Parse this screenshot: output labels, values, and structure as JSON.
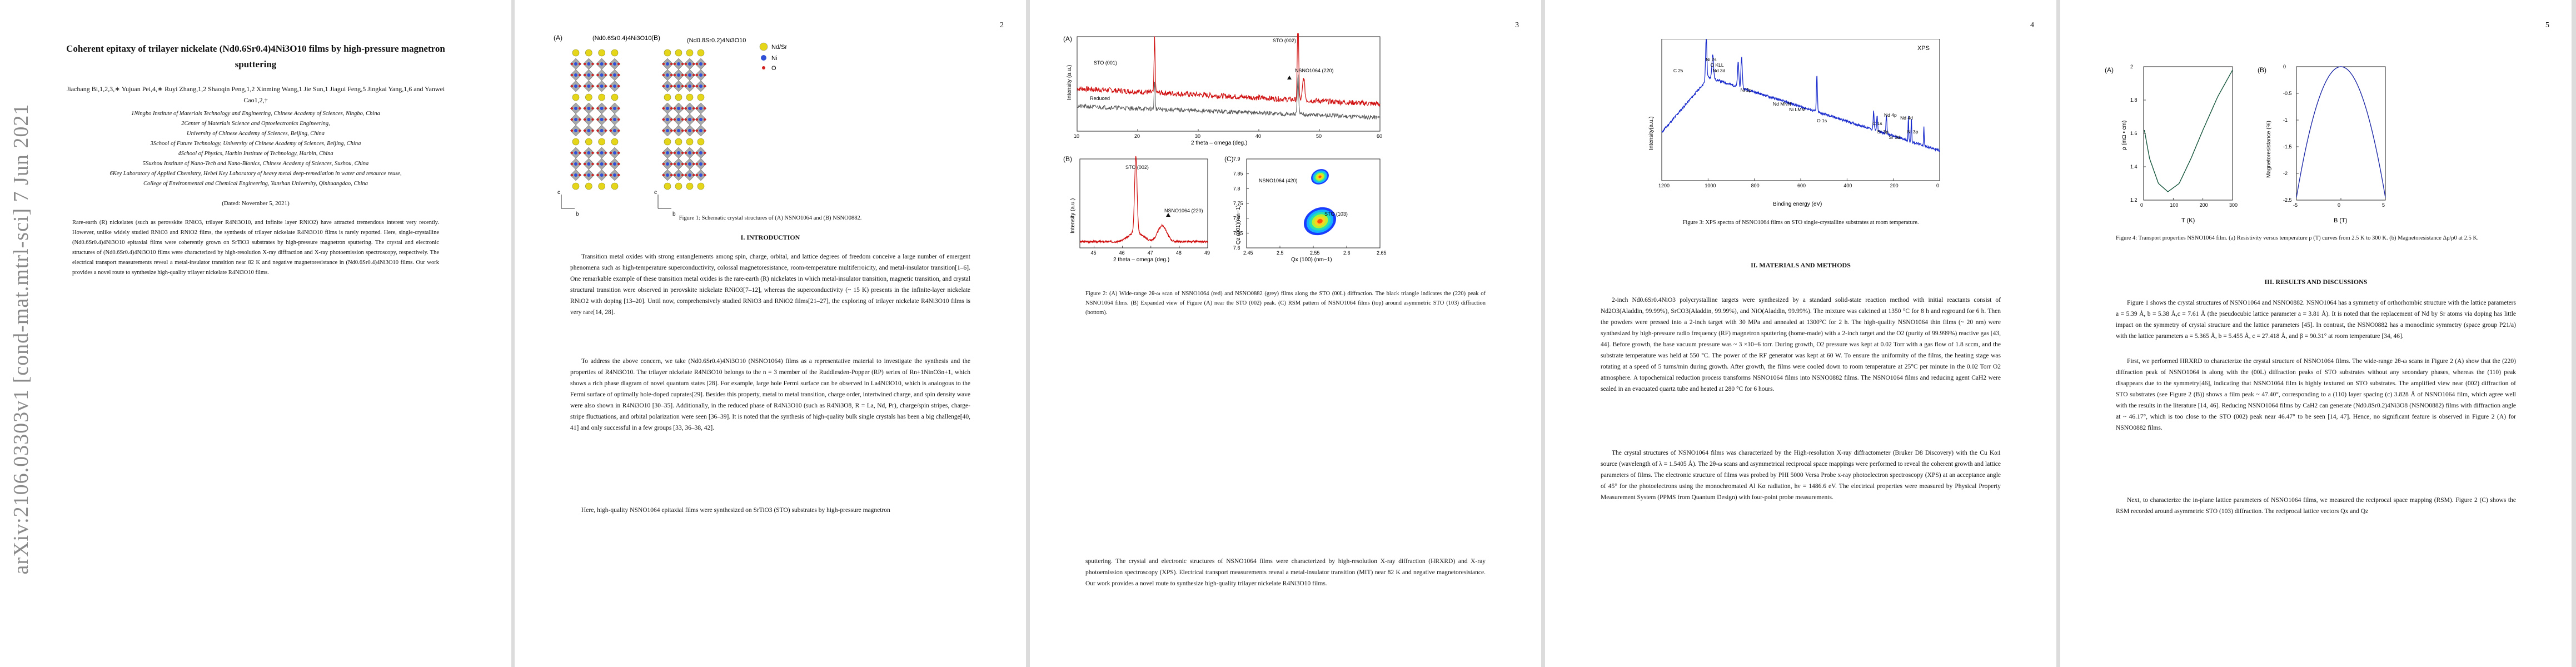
{
  "arxiv_id": "arXiv:2106.03303v1  [cond-mat.mtrl-sci]  7 Jun 2021",
  "page1": {
    "title": "Coherent epitaxy of trilayer nickelate (Nd0.6Sr0.4)4Ni3O10 films by high-pressure magnetron sputtering",
    "authors": "Jiachang Bi,1,2,3,∗ Yujuan Pei,4,∗ Ruyi Zhang,1,2 Shaoqin Peng,1,2 Xinming Wang,1 Jie Sun,1 Jiagui Feng,5 Jingkai Yang,1,6 and Yanwei Cao1,2,†",
    "affiliations": [
      "1Ningbo Institute of Materials Technology and Engineering, Chinese Academy of Sciences, Ningbo, China",
      "2Center of Materials Science and Optoelectronics Engineering,",
      "University of Chinese Academy of Sciences, Beijing, China",
      "3School of Future Technology, University of Chinese Academy of Sciences, Beijing, China",
      "4School of Physics, Harbin Institute of Technology, Harbin, China",
      "5Suzhou Institute of Nano-Tech and Nano-Bionics, Chinese Academy of Sciences, Suzhou, China",
      "6Key Laboratory of Applied Chemistry, Hebei Key Laboratory of heavy metal deep-remediation in water and resource reuse,",
      "College of Environmental and Chemical Engineering, Yanshan University, Qinhuangdao, China"
    ],
    "date": "(Dated: November 5, 2021)",
    "abstract": "Rare-earth (R) nickelates (such as perovskite RNiO3, trilayer R4Ni3O10, and infinite layer RNiO2) have attracted tremendous interest very recently. However, unlike widely studied RNiO3 and RNiO2 films, the synthesis of trilayer nickelate R4Ni3O10 films is rarely reported. Here, single-crystalline (Nd0.6Sr0.4)4Ni3O10 epitaxial films were coherently grown on SrTiO3 substrates by high-pressure magnetron sputtering. The crystal and electronic structures of (Nd0.6Sr0.4)4Ni3O10 films were characterized by high-resolution X-ray diffraction and X-ray photoemission spectroscopy, respectively. The electrical transport measurements reveal a metal-insulator transition near 82 K and negative magnetoresistance in (Nd0.6Sr0.4)4Ni3O10 films. Our work provides a novel route to synthesize high-quality trilayer nickelate R4Ni3O10 films."
  },
  "page2": {
    "page_number": "2",
    "fig1_panel_a": "(A)",
    "fig1_panel_b": "(B)",
    "fig1_label_a": "(Nd0.6Sr0.4)4Ni3O10",
    "fig1_label_b": "(Nd0.8Sr0.2)4Ni3O10",
    "legend": [
      "Nd/Sr",
      "Ni",
      "O"
    ],
    "axis_c": "c",
    "axis_b": "b",
    "fig1_caption": "Figure 1:   Schematic crystal structures of (A) NSNO1064 and (B) NSNO0882.",
    "section": "I.   INTRODUCTION",
    "paragraphs": [
      "Transition metal oxides with strong entanglements among spin, charge, orbital, and lattice degrees of freedom conceive a large number of emergent phenomena such as high-temperature superconductivity, colossal magnetoresistance, room-temperature multiferroicity, and metal-insulator transition[1–6]. One remarkable example of these transition metal oxides is the rare-earth (R) nickelates in which metal-insulator transition, magnetic transition, and crystal structural transition were observed in perovskite nickelate RNiO3[7–12], whereas the superconductivity (~ 15 K) presents in the infinite-layer nickelate RNiO2 with doping [13–20]. Until now, comprehensively studied RNiO3 and RNiO2 films[21–27], the exploring of trilayer nickelate R4Ni3O10 films is very rare[14, 28].",
      "To address the above concern, we take (Nd0.6Sr0.4)4Ni3O10 (NSNO1064) films as a representative material to investigate the synthesis and the properties of R4Ni3O10. The trilayer nickelate R4Ni3O10 belongs to the n = 3 member of the Ruddlesden-Popper (RP) series of Rn+1NinO3n+1, which shows a rich phase diagram of novel quantum states [28]. For example, large hole Fermi surface can be observed in La4Ni3O10, which is analogous to the Fermi surface of optimally hole-doped cuprates[29]. Besides this property, metal to metal transition, charge order, intertwined charge, and spin density wave were also shown in R4Ni3O10 [30–35]. Additionally, in the reduced phase of R4Ni3O10 (such as R4Ni3O8, R = La, Nd, Pr), charge/spin stripes, charge-stripe fluctuations, and orbital polarization were seen [36–39]. It is noted that the synthesis of high-quality bulk single crystals has been a big challenge[40, 41] and only successful in a few groups [33, 36–38, 42].",
      "Here, high-quality NSNO1064 epitaxial films were synthesized on SrTiO3 (STO) substrates by high-pressure magnetron"
    ]
  },
  "page3": {
    "page_number": "3",
    "panel_a": "(A)",
    "panel_b": "(B)",
    "panel_c": "(C)",
    "a_ylabel": "Intensity (a.u.)",
    "a_xlabel": "2 theta – omega (deg.)",
    "a_labels": [
      "STO (001)",
      "STO (002)",
      "NSNO1064 (220)",
      "Reduced"
    ],
    "b_ylabel": "Intensity (a.u.)",
    "b_xlabel": "2 theta – omega (deg.)",
    "b_labels": [
      "STO (002)",
      "NSNO1064 (220)"
    ],
    "c_ylabel": "Qz (001)(nm−1)",
    "c_xlabel": "Qx (100) (nm−1)",
    "c_labels": [
      "NSNO1064 (420)",
      "STO (103)"
    ],
    "fig2_caption": "Figure 2:   (A) Wide-range 2θ-ω scan of NSNO1064 (red) and NSNO0882 (grey) films along the STO (00L) diffraction. The black triangle indicates the (220) peak of NSNO1064 films. (B) Expanded view of Figure (A) near the STO (002) peak. (C) RSM pattern of NSNO1064 films (top) around asymmetric STO (103) diffraction (bottom).",
    "paragraph": "sputtering. The crystal and electronic structures of NSNO1064 films were characterized by high-resolution X-ray diffraction (HRXRD) and X-ray photoemission spectroscopy (XPS). Electrical transport measurements reveal a metal-insulator transition (MIT) near 82 K and negative magnetoresistance. Our work provides a novel route to synthesize high-quality trilayer nickelate R4Ni3O10 films."
  },
  "page4": {
    "page_number": "4",
    "xps_tag": "XPS",
    "ylabel": "Intensity(a.u.)",
    "xlabel": "Binding energy (eV)",
    "peak_labels": [
      "C 2s",
      "Ni 2s",
      "O KLL",
      "Nd 3d",
      "Ni 2p",
      "Nd MNN",
      "Ni LMM",
      "O 1s",
      "C 1s",
      "Sr 3p",
      "Nd 4p",
      "Sr 3d",
      "Nd 4d",
      "Ni 3p"
    ],
    "fig3_caption": "Figure 3:   XPS spectra of NSNO1064 films on STO single-crystalline substrates at room temperature.",
    "section": "II.   MATERIALS AND METHODS",
    "paragraphs": [
      "2-inch Nd0.6Sr0.4NiO3 polycrystalline targets were synthesized by a standard solid-state reaction method with initial reactants consist of Nd2O3(Aladdin, 99.99%), SrCO3(Aladdin, 99.99%), and NiO(Aladdin, 99.99%). The mixture was calcined at 1350 °C for 8 h and reground for 6 h. Then the powders were pressed into a 2-inch target with 30 MPa and annealed at 1300°C for 2 h. The high-quality NSNO1064 thin films (~ 20 nm) were synthesized by high-pressure radio frequency (RF) magnetron sputtering (home-made) with a 2-inch target and the O2 (purity of 99.999%) reactive gas [43, 44]. Before growth, the base vacuum pressure was ~ 3 ×10−6 torr. During growth, O2 pressure was kept at 0.02 Torr with a gas flow of 1.8 sccm, and the substrate temperature was held at 550 °C. The power of the RF generator was kept at 60 W. To ensure the uniformity of the films, the heating stage was rotating at a speed of 5 turns/min during growth. After growth, the films were cooled down to room temperature at 25°C per minute in the 0.02 Torr O2 atmosphere. A topochemical reduction process transforms NSNO1064 films into NSNO0882 films. The NSNO1064 films and reducing agent CaH2 were sealed in an evacuated quartz tube and heated at 280 °C for 6 hours.",
      "The crystal structures of NSNO1064 films was characterized by the High-resolution X-ray diffractometer (Bruker D8 Discovery) with the Cu Kα1 source (wavelength of λ = 1.5405 Å). The 2θ-ω scans and asymmetrical reciprocal space mappings were performed to reveal the coherent growth and lattice parameters of films. The electronic structure of films was probed by PHI 5000 Versa Probe x-ray photoelectron spectroscopy (XPS) at an acceptance angle of 45° for the photoelectrons using the monochromated Al Kα radiation, hν = 1486.6 eV. The electrical properties were measured by Physical Property Measurement System (PPMS from Quantum Design) with four-point probe measurements."
    ]
  },
  "page5": {
    "page_number": "5",
    "panel_a": "(A)",
    "panel_b": "(B)",
    "a_ylabel": "ρ (mΩ • cm)",
    "a_xlabel": "T (K)",
    "b_ylabel": "Magnetoresistance (%)",
    "b_xlabel": "B (T)",
    "fig4_caption": "Figure 4:   Transport properties NSNO1064 film. (a) Resistivity versus temperature ρ (T) curves from 2.5 K to 300 K. (b) Magnetoresistance Δρ/ρ0 at 2.5 K.",
    "section": "III.   RESULTS AND DISCUSSIONS",
    "paragraphs": [
      "Figure 1 shows the crystal structures of NSNO1064 and NSNO0882. NSNO1064 has a symmetry of orthorhombic structure with the lattice parameters a = 5.39 Å, b = 5.38 Å,c = 7.61 Å (the pseudocubic lattice parameter a = 3.81 Å). It is noted that the replacement of Nd by Sr atoms via doping has little impact on the symmetry of crystal structure and the lattice parameters [45]. In contrast, the NSNO0882 has a monoclinic symmetry (space group P21/a) with the lattice parameters a = 5.365 Å, b = 5.455 Å, c = 27.418 Å, and β = 90.31° at room temperature [34, 46].",
      "First, we performed HRXRD to characterize the crystal structure of NSNO1064 films. The wide-range 2θ-ω scans in Figure 2 (A) show that the (220) diffraction peak of NSNO1064 is along with the (00L) diffraction peaks of STO substrates without any secondary phases, whereas the (110) peak disappears due to the symmetry[46], indicating that NSNO1064 film is highly textured on STO substrates. The amplified view near (002) diffraction of STO substrates (see Figure 2 (B)) shows a film peak ~ 47.40°, corresponding to a (110) layer spacing (c) 3.828 Å of NSNO1064 film, which agree well with the results in the literature [14, 46]. Reducing NSNO1064 films by CaH2 can generate (Nd0.8Sr0.2)4Ni3O8 (NSNO0882) films with diffraction angle at ~ 46.17°, which is too close to the STO (002) peak near 46.47° to be seen [14, 47]. Hence, no significant feature is observed in Figure 2 (A) for NSNO0882 films.",
      "Next, to characterize the in-plane lattice parameters of NSNO1064 films, we measured the reciprocal space mapping (RSM). Figure 2 (C) shows the RSM recorded around asymmetric STO (103) diffraction. The reciprocal lattice vectors Qx and Qz"
    ]
  },
  "chart_data": [
    {
      "type": "line",
      "title": "Fig 2A",
      "xlabel": "2 theta – omega (deg.)",
      "ylabel": "Intensity (a.u.)",
      "xlim": [
        10,
        60
      ],
      "x_ticks": [
        10,
        20,
        30,
        40,
        50,
        60
      ],
      "series": [
        {
          "name": "NSNO1064",
          "x": [
            10,
            20,
            22.8,
            25,
            30,
            40,
            46.47,
            47.4,
            50,
            60
          ],
          "y": [
            0.55,
            0.42,
            0.78,
            0.4,
            0.36,
            0.33,
            1.0,
            0.62,
            0.3,
            0.28
          ]
        },
        {
          "name": "Reduced",
          "x": [
            10,
            20,
            30,
            40,
            46.47,
            50,
            60
          ],
          "y": [
            0.22,
            0.18,
            0.15,
            0.12,
            0.55,
            0.1,
            0.08
          ]
        }
      ],
      "annotations": [
        "STO (001)",
        "STO (002)",
        "NSNO1064 (220)",
        "Reduced"
      ]
    },
    {
      "type": "line",
      "title": "Fig 2B",
      "xlabel": "2 theta – omega (deg.)",
      "ylabel": "Intensity (a.u.)",
      "xlim": [
        44.5,
        49
      ],
      "x_ticks": [
        45,
        46,
        47,
        48,
        49
      ],
      "series": [
        {
          "name": "NSNO1064",
          "x": [
            44.5,
            45.5,
            46.2,
            46.47,
            46.7,
            47.1,
            47.4,
            47.7,
            48.5,
            49
          ],
          "y": [
            0.05,
            0.07,
            0.18,
            1.0,
            0.2,
            0.14,
            0.24,
            0.12,
            0.05,
            0.04
          ]
        }
      ],
      "annotations": [
        "STO (002)",
        "NSNO1064 (220)"
      ]
    },
    {
      "type": "heatmap",
      "title": "Fig 2C",
      "xlabel": "Qx (100) (nm−1)",
      "ylabel": "Qz (001)(nm−1)",
      "xlim": [
        2.45,
        2.65
      ],
      "ylim": [
        7.6,
        7.9
      ],
      "x_ticks": [
        2.45,
        2.5,
        2.55,
        2.6,
        2.65
      ],
      "y_ticks": [
        7.6,
        7.65,
        7.7,
        7.75,
        7.8,
        7.85,
        7.9
      ],
      "spots": [
        {
          "label": "NSNO1064 (420)",
          "qx": 2.56,
          "qz": 7.84
        },
        {
          "label": "STO (103)",
          "qx": 2.56,
          "qz": 7.69
        }
      ]
    },
    {
      "type": "line",
      "title": "Fig 3 XPS",
      "xlabel": "Binding energy (eV)",
      "ylabel": "Intensity(a.u.)",
      "xlim": [
        1200,
        0
      ],
      "x_ticks": [
        1200,
        1000,
        800,
        600,
        400,
        200,
        0
      ],
      "series": [
        {
          "name": "XPS",
          "x": [
            1200,
            1100,
            1008,
            1000,
            980,
            870,
            855,
            700,
            530,
            290,
            270,
            130,
            0
          ],
          "y": [
            0.35,
            0.5,
            0.95,
            0.7,
            0.82,
            0.7,
            0.78,
            0.58,
            0.42,
            0.38,
            0.2,
            0.15,
            0.05
          ]
        }
      ]
    },
    {
      "type": "line",
      "title": "Fig 4A",
      "xlabel": "T (K)",
      "ylabel": "ρ (mΩ • cm)",
      "xlim": [
        0,
        300
      ],
      "ylim": [
        1.2,
        2.0
      ],
      "x_ticks": [
        0,
        100,
        200,
        300
      ],
      "y_ticks": [
        1.2,
        1.4,
        1.6,
        1.8,
        2.0
      ],
      "series": [
        {
          "name": "ρ(T)",
          "x": [
            2.5,
            20,
            50,
            82,
            120,
            160,
            200,
            250,
            300
          ],
          "y": [
            1.62,
            1.45,
            1.3,
            1.25,
            1.3,
            1.45,
            1.62,
            1.82,
            1.98
          ]
        }
      ]
    },
    {
      "type": "line",
      "title": "Fig 4B",
      "xlabel": "B (T)",
      "ylabel": "Magnetoresistance (%)",
      "xlim": [
        -5,
        5
      ],
      "ylim": [
        -2.5,
        0
      ],
      "x_ticks": [
        -5,
        0,
        5
      ],
      "y_ticks": [
        0,
        -0.5,
        -1,
        -1.5,
        -2,
        -2.5
      ],
      "series": [
        {
          "name": "MR",
          "x": [
            -5,
            -4,
            -3,
            -2,
            -1,
            0,
            1,
            2,
            3,
            4,
            5
          ],
          "y": [
            -2.45,
            -1.75,
            -1.05,
            -0.5,
            -0.13,
            0,
            -0.13,
            -0.5,
            -1.05,
            -1.75,
            -2.45
          ]
        }
      ]
    }
  ]
}
